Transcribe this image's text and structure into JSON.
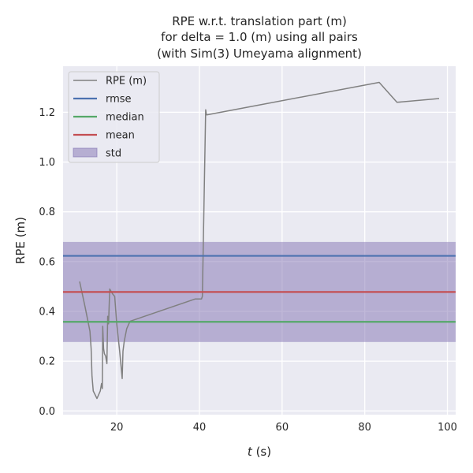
{
  "chart_data": {
    "type": "line",
    "title_lines": [
      "RPE w.r.t. translation part (m)",
      "for delta = 1.0 (m) using all pairs",
      "(with Sim(3) Umeyama alignment)"
    ],
    "xlabel_italic": "t",
    "xlabel_rest": " (s)",
    "ylabel": "RPE (m)",
    "xlim": [
      7,
      102
    ],
    "ylim": [
      -0.015,
      1.385
    ],
    "xticks": [
      20,
      40,
      60,
      80,
      100
    ],
    "yticks": [
      0.0,
      0.2,
      0.4,
      0.6,
      0.8,
      1.0,
      1.2
    ],
    "ytick_labels": [
      "0.0",
      "0.2",
      "0.4",
      "0.6",
      "0.8",
      "1.0",
      "1.2"
    ],
    "grid": true,
    "legend_position": "top-left",
    "legend": [
      {
        "label": "RPE (m)",
        "kind": "line",
        "color": "#808080"
      },
      {
        "label": "rmse",
        "kind": "line",
        "color": "#4c72b0"
      },
      {
        "label": "median",
        "kind": "line",
        "color": "#55a868"
      },
      {
        "label": "mean",
        "kind": "line",
        "color": "#c44e52"
      },
      {
        "label": "std",
        "kind": "patch",
        "color": "#8172b2"
      }
    ],
    "series": [
      {
        "name": "RPE (m)",
        "color": "#808080",
        "x": [
          11.0,
          12.3,
          13.5,
          13.8,
          14.0,
          14.3,
          15.2,
          16.0,
          16.3,
          16.5,
          16.6,
          16.8,
          17.0,
          17.3,
          17.6,
          17.8,
          18.0,
          18.3,
          19.0,
          19.5,
          20.0,
          20.7,
          21.3,
          21.5,
          21.8,
          22.4,
          23.2,
          39.0,
          40.5,
          40.7,
          41.5,
          41.7,
          41.9,
          83.5,
          87.8,
          98.0
        ],
        "y": [
          0.52,
          0.42,
          0.32,
          0.25,
          0.14,
          0.08,
          0.05,
          0.08,
          0.11,
          0.09,
          0.34,
          0.25,
          0.23,
          0.22,
          0.19,
          0.38,
          0.35,
          0.49,
          0.47,
          0.46,
          0.35,
          0.24,
          0.13,
          0.24,
          0.28,
          0.33,
          0.36,
          0.45,
          0.45,
          0.46,
          1.21,
          1.19,
          1.19,
          1.32,
          1.24,
          1.255
        ]
      }
    ],
    "statistics": {
      "rmse": 0.623,
      "median": 0.358,
      "mean": 0.478,
      "std_low": 0.277,
      "std_high": 0.679
    },
    "colors": {
      "background": "#eaeaf2",
      "grid": "#ffffff",
      "rmse": "#4c72b0",
      "median": "#55a868",
      "mean": "#c44e52",
      "std": "#8172b2"
    }
  }
}
